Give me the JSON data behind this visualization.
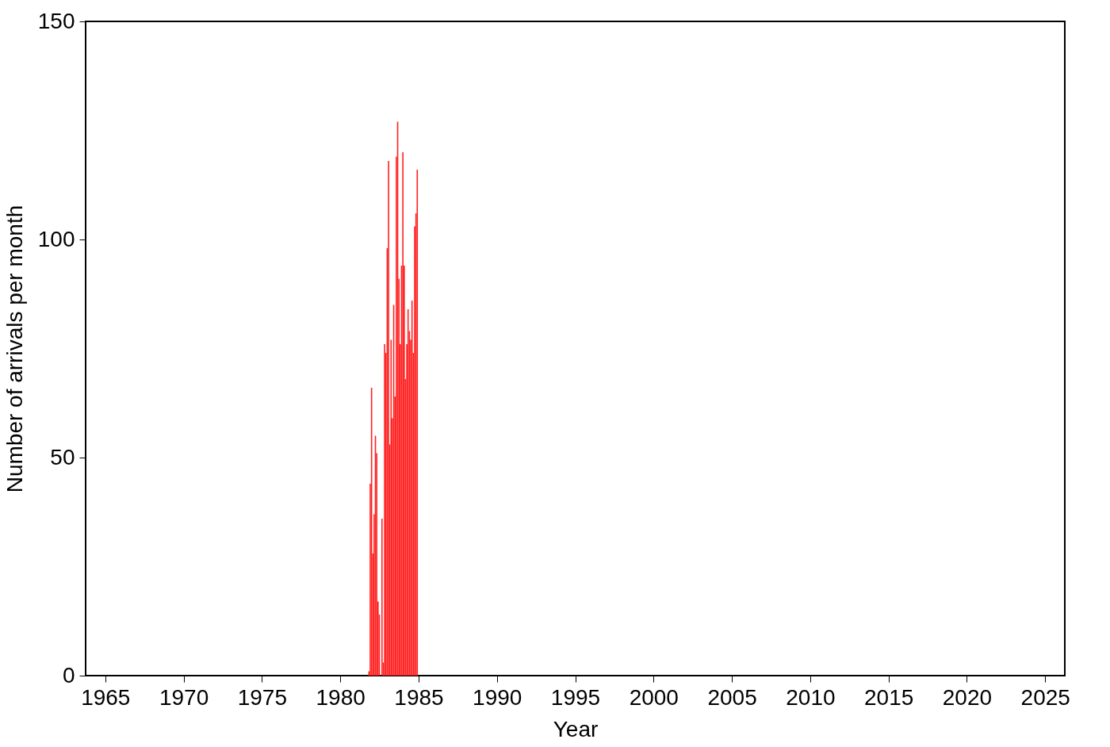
{
  "chart_data": {
    "type": "bar",
    "xlabel": "Year",
    "ylabel": "Number of arrivals per month",
    "x": [
      "1981-11",
      "1981-12",
      "1982-01",
      "1982-02",
      "1982-03",
      "1982-04",
      "1982-05",
      "1982-06",
      "1982-07",
      "1982-08",
      "1982-09",
      "1982-10",
      "1982-11",
      "1982-12",
      "1983-01",
      "1983-02",
      "1983-03",
      "1983-04",
      "1983-05",
      "1983-06",
      "1983-07",
      "1983-08",
      "1983-09",
      "1983-10",
      "1983-11",
      "1983-12",
      "1984-01",
      "1984-02",
      "1984-03",
      "1984-04",
      "1984-05",
      "1984-06",
      "1984-07",
      "1984-08",
      "1984-09",
      "1984-10",
      "1984-11",
      "1984-12"
    ],
    "values": [
      1,
      44,
      66,
      28,
      37,
      55,
      51,
      17,
      14,
      0,
      36,
      3,
      76,
      74,
      98,
      118,
      53,
      77,
      59,
      85,
      64,
      119,
      127,
      91,
      76,
      94,
      120,
      94,
      68,
      76,
      84,
      79,
      77,
      86,
      74,
      103,
      106,
      116
    ],
    "color": "#ff2020",
    "xlim": [
      "1964-01-01",
      "2026-01-01"
    ],
    "xticks": [
      "1965",
      "1970",
      "1975",
      "1980",
      "1985",
      "1990",
      "1995",
      "2000",
      "2005",
      "2010",
      "2015",
      "2020",
      "2025"
    ],
    "ylim": [
      0,
      150
    ],
    "yticks": [
      0,
      50,
      100,
      150
    ],
    "grid": false
  }
}
